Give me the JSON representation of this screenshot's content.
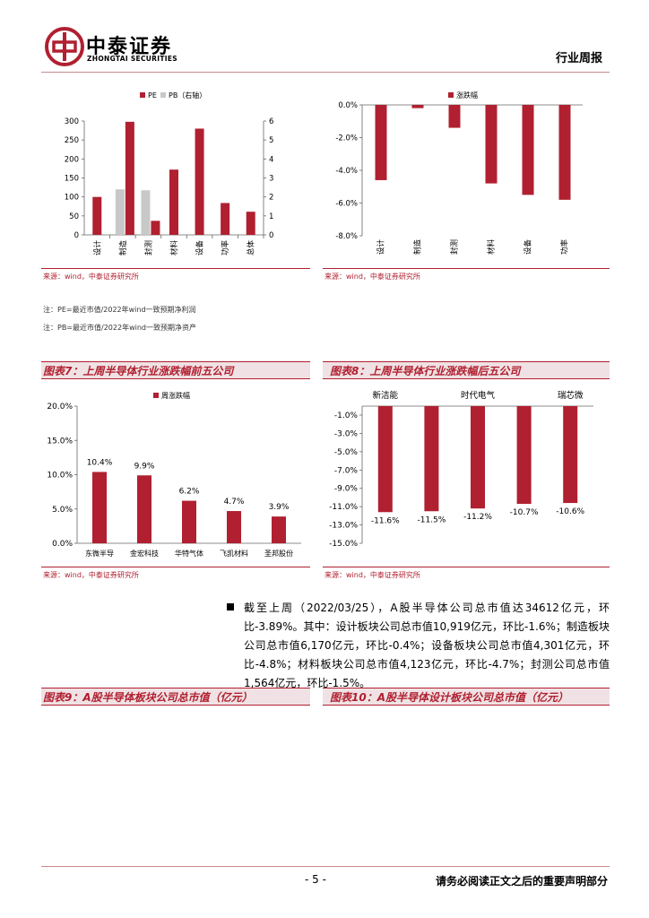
{
  "header": {
    "brand_cn": "中泰证券",
    "brand_en": "ZHONGTAI SECURITIES",
    "report_type": "行业周报"
  },
  "colors": {
    "accent": "#b02030",
    "gray_bar": "#c8c8c8"
  },
  "charts": {
    "pe_pb": {
      "legend_pe": "PE",
      "legend_pb": "PB（右轴）",
      "source": "来源：wind，中泰证券研究所"
    },
    "change": {
      "legend": "涨跌幅",
      "source": "来源：wind，中泰证券研究所"
    },
    "top5": {
      "legend": "周涨跌幅",
      "source": "来源：wind，中泰证券研究所"
    },
    "bottom5": {
      "source": "来源：wind，中泰证券研究所"
    }
  },
  "notes": {
    "pe": "注：PE=最近市值/2022年wind一致预期净利润",
    "pb": "注：PB=最近市值/2022年wind一致预期净资产"
  },
  "figures": {
    "fig7": "图表7：上周半导体行业涨跌幅前五公司",
    "fig8": "图表8：上周半导体行业涨跌幅后五公司",
    "fig9": "图表9：A股半导体板块公司总市值（亿元）",
    "fig10": "图表10：A股半导体设计板块公司总市值（亿元）"
  },
  "paragraph": "截至上周（2022/03/25），A股半导体公司总市值达34612亿元，环比-3.89%。其中：设计板块公司总市值10,919亿元，环比-1.6%；制造板块公司总市值6,170亿元，环比-0.4%；设备板块公司总市值4,301亿元，环比-4.8%；材料板块公司总市值4,123亿元，环比-4.7%；封测公司总市值1,564亿元，环比-1.5%。",
  "footer": {
    "page": "- 5 -",
    "disclaimer": "请务必阅读正文之后的重要声明部分"
  },
  "chart_data": [
    {
      "type": "bar",
      "categories": [
        "设计",
        "制造",
        "封测",
        "材料",
        "设备",
        "功率",
        "总体"
      ],
      "series": [
        {
          "name": "PE",
          "values": [
            100,
            298,
            37,
            172,
            280,
            84,
            61
          ]
        },
        {
          "name": "PB（右轴）",
          "values": [
            null,
            2.4,
            2.35,
            null,
            null,
            null,
            null
          ]
        }
      ],
      "yticks_left": [
        "0",
        "50",
        "100",
        "150",
        "200",
        "250",
        "300"
      ],
      "yticks_right": [
        "0",
        "1",
        "2",
        "3",
        "4",
        "5",
        "6"
      ],
      "ylim": [
        0,
        300
      ],
      "ylim_right": [
        0,
        6
      ],
      "legend": "top"
    },
    {
      "type": "bar",
      "categories": [
        "设计",
        "制造",
        "封测",
        "材料",
        "设备",
        "功率"
      ],
      "series": [
        {
          "name": "涨跌幅",
          "values": [
            -4.6,
            -0.2,
            -1.4,
            -4.8,
            -5.5,
            -5.8
          ]
        }
      ],
      "yticks": [
        "0.0%",
        "-2.0%",
        "-4.0%",
        "-6.0%",
        "-8.0%"
      ],
      "ylim": [
        -8,
        0
      ],
      "legend": "top"
    },
    {
      "type": "bar",
      "categories": [
        "东微半导",
        "金宏科技",
        "华特气体",
        "飞凯材料",
        "圣邦股份"
      ],
      "series": [
        {
          "name": "周涨跌幅",
          "values": [
            10.4,
            9.9,
            6.2,
            4.7,
            3.9
          ]
        }
      ],
      "labels": [
        "10.4%",
        "9.9%",
        "6.2%",
        "4.7%",
        "3.9%"
      ],
      "yticks": [
        "0.0%",
        "5.0%",
        "10.0%",
        "15.0%",
        "20.0%"
      ],
      "ylim": [
        0,
        20
      ],
      "legend": "top"
    },
    {
      "type": "bar",
      "categories": [
        "新洁能",
        "",
        "时代电气",
        "",
        "瑞芯微"
      ],
      "values": [
        -11.6,
        -11.5,
        -11.2,
        -10.7,
        -10.6
      ],
      "labels": [
        "-11.6%",
        "-11.5%",
        "-11.2%",
        "-10.7%",
        "-10.6%"
      ],
      "yticks": [
        "-1.0%",
        "-3.0%",
        "-5.0%",
        "-7.0%",
        "-9.0%",
        "-11.0%",
        "-13.0%",
        "-15.0%"
      ],
      "ylim": [
        -15,
        -1
      ]
    }
  ]
}
